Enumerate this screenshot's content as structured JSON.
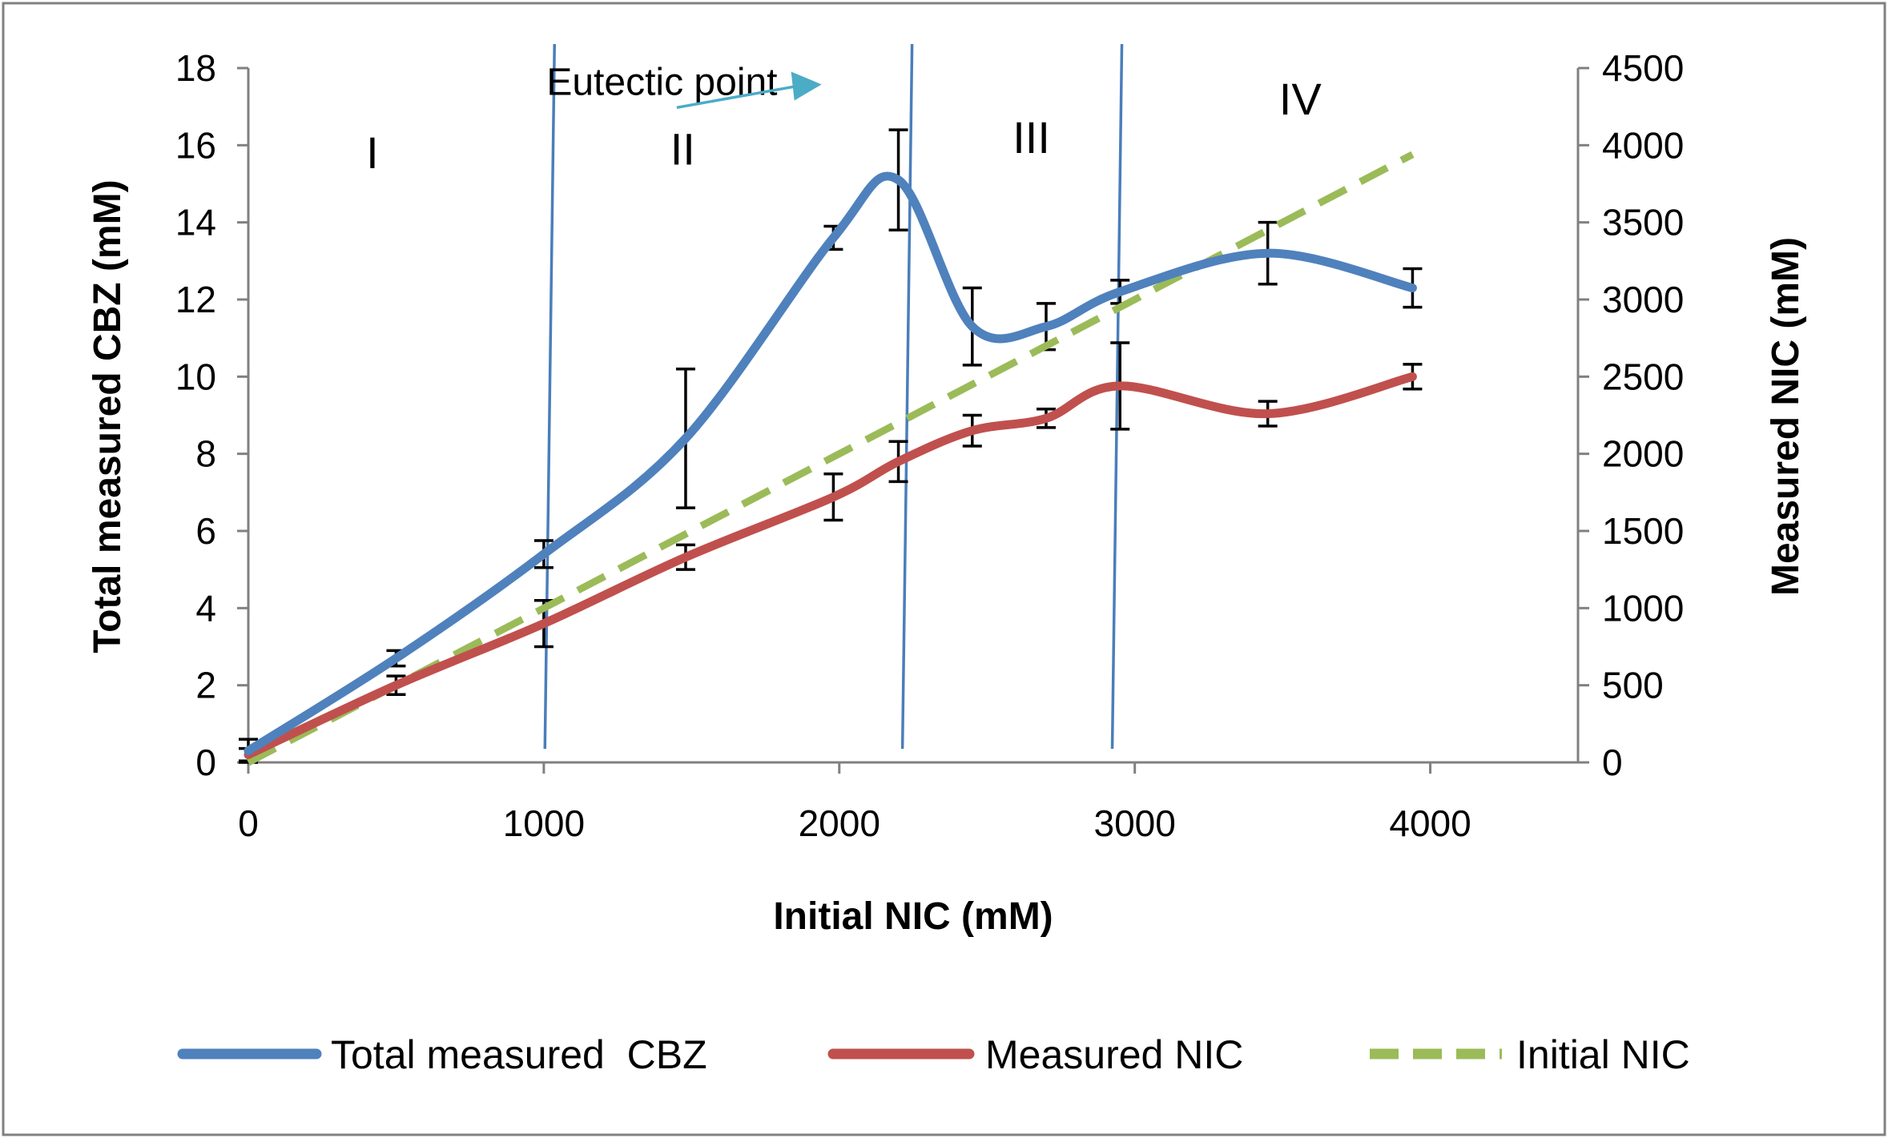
{
  "chart_data": {
    "type": "line",
    "title": "",
    "xlabel": "Initial NIC (mM)",
    "ylabel": "Total measured CBZ (mM)",
    "y2label": "Measured NIC (mM)",
    "xlim": [
      0,
      4500
    ],
    "ylim": [
      0,
      18
    ],
    "y2lim": [
      0,
      4500
    ],
    "x_ticks": [
      0,
      1000,
      2000,
      3000,
      4000
    ],
    "y_ticks": [
      0,
      2,
      4,
      6,
      8,
      10,
      12,
      14,
      16,
      18
    ],
    "y2_ticks": [
      0,
      500,
      1000,
      1500,
      2000,
      2500,
      3000,
      3500,
      4000,
      4500
    ],
    "grid": false,
    "legend_position": "bottom",
    "series": [
      {
        "name": "Total measured  CBZ",
        "axis": "left",
        "color": "#4f81bd",
        "style": "solid",
        "x": [
          0,
          500,
          1000,
          1480,
          1980,
          2200,
          2450,
          2700,
          2950,
          3450,
          3940
        ],
        "y": [
          0.3,
          2.7,
          5.4,
          8.4,
          13.6,
          15.1,
          11.3,
          11.3,
          12.2,
          13.2,
          12.3
        ],
        "error": [
          0.3,
          0.2,
          0.35,
          1.8,
          0.3,
          1.3,
          1.0,
          0.6,
          0.3,
          0.8,
          0.5
        ]
      },
      {
        "name": "Measured NIC",
        "axis": "right",
        "color": "#c0504d",
        "style": "solid",
        "x": [
          0,
          500,
          1000,
          1480,
          1980,
          2200,
          2450,
          2700,
          2950,
          3450,
          3940
        ],
        "y": [
          50,
          500,
          900,
          1330,
          1720,
          1950,
          2150,
          2230,
          2440,
          2260,
          2500
        ],
        "error": [
          40,
          60,
          150,
          80,
          150,
          130,
          100,
          60,
          280,
          80,
          80
        ]
      },
      {
        "name": "Initial NIC",
        "axis": "right",
        "color": "#9bbb59",
        "style": "dashed",
        "x": [
          0,
          500,
          1000,
          1480,
          1980,
          2200,
          2450,
          2700,
          2950,
          3450,
          3940
        ],
        "y": [
          0,
          500,
          1000,
          1480,
          1980,
          2200,
          2450,
          2700,
          2950,
          3450,
          3940
        ]
      }
    ],
    "vertical_lines": [
      1020,
      2230,
      2940
    ],
    "regions": [
      {
        "label": "I",
        "x": 420,
        "y": 15.4
      },
      {
        "label": "II",
        "x": 1470,
        "y": 15.5
      },
      {
        "label": "III",
        "x": 2650,
        "y": 15.8
      },
      {
        "label": "IV",
        "x": 3560,
        "y": 16.8
      }
    ],
    "annotations": [
      {
        "text": "Eutectic point",
        "x": 1400,
        "y": 17.3,
        "arrow_from": [
          1450,
          17.35
        ],
        "arrow_to": [
          1940,
          17.7
        ]
      }
    ]
  }
}
